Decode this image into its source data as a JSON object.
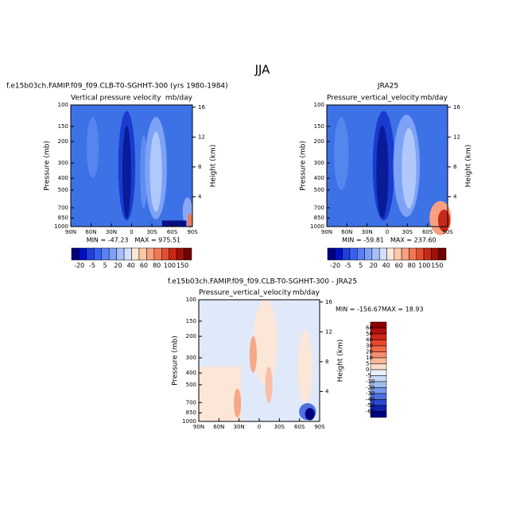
{
  "title": "JJA",
  "chart_data": [
    {
      "type": "contour",
      "title": "f.e15b03ch.FAMIP.f09_f09.CLB-T0-SGHHT-300 (yrs 1980-1984)",
      "subtitle": "Vertical pressure velocity",
      "units": "mb/day",
      "stats": [
        "MIN = -47.23",
        "MAX = 975.51"
      ],
      "xlabel": null,
      "ylabel": "Pressure (mb)",
      "y2label": "Height (km)",
      "xlim": [
        90,
        -90
      ],
      "xticks": [
        {
          "value": 90,
          "label": "90N"
        },
        {
          "value": 60,
          "label": "60N"
        },
        {
          "value": 30,
          "label": "30N"
        },
        0,
        {
          "value": -30,
          "label": "30S"
        },
        {
          "value": -60,
          "label": "60S"
        },
        {
          "value": -90,
          "label": "90S"
        }
      ],
      "ylim": [
        1000,
        100
      ],
      "ylog": true,
      "yticks": [
        100,
        150,
        200,
        300,
        400,
        500,
        700,
        850,
        1000
      ],
      "y2lim": [
        0,
        16.3
      ],
      "y2ticks": [
        4,
        8,
        12,
        16
      ],
      "colorbar": {
        "orientation": "horizontal",
        "colors": [
          "#000080",
          "#0010c0",
          "#1f3fe0",
          "#3860f0",
          "#5a80f5",
          "#80a0f8",
          "#a8c0fa",
          "#d0e0fc",
          "#fde8d8",
          "#fcc8a8",
          "#f8a080",
          "#f07858",
          "#e05030",
          "#c82818",
          "#a01008",
          "#700000"
        ],
        "labels": [
          -20,
          -5,
          5,
          20,
          40,
          60,
          80,
          100,
          150
        ]
      },
      "field": "model"
    },
    {
      "type": "contour",
      "title": "JRA25",
      "subtitle": "Pressure_vertical_velocity",
      "units": "mb/day",
      "stats": [
        "MIN = -59.81",
        "MAX = 237.60"
      ],
      "xlabel": null,
      "ylabel": "Pressure (mb)",
      "y2label": "Height (km)",
      "xlim": [
        90,
        -90
      ],
      "xticks": [
        {
          "value": 90,
          "label": "90N"
        },
        {
          "value": 60,
          "label": "60N"
        },
        {
          "value": 30,
          "label": "30N"
        },
        0,
        {
          "value": -30,
          "label": "30S"
        },
        {
          "value": -60,
          "label": "60S"
        },
        {
          "value": -90,
          "label": "90S"
        }
      ],
      "ylim": [
        1000,
        100
      ],
      "ylog": true,
      "yticks": [
        100,
        150,
        200,
        300,
        400,
        500,
        700,
        850,
        1000
      ],
      "y2lim": [
        0,
        16.3
      ],
      "y2ticks": [
        4,
        8,
        12,
        16
      ],
      "colorbar": {
        "orientation": "horizontal",
        "colors": [
          "#000080",
          "#0010c0",
          "#1f3fe0",
          "#3860f0",
          "#5a80f5",
          "#80a0f8",
          "#a8c0fa",
          "#d0e0fc",
          "#fde8d8",
          "#fcc8a8",
          "#f8a080",
          "#f07858",
          "#e05030",
          "#c82818",
          "#a01008",
          "#700000"
        ],
        "labels": [
          -20,
          -5,
          5,
          20,
          40,
          60,
          80,
          100,
          150
        ]
      },
      "field": "obs"
    },
    {
      "type": "contour",
      "title": "f.e15b03ch.FAMIP.f09_f09.CLB-T0-SGHHT-300 - JRA25",
      "subtitle": "Pressure_vertical_velocity",
      "units": "mb/day",
      "stats": [
        "MIN = -156.67",
        "MAX = 18.93"
      ],
      "xlabel": null,
      "ylabel": "Pressure (mb)",
      "y2label": "Height (km)",
      "xlim": [
        90,
        -90
      ],
      "xticks": [
        {
          "value": 90,
          "label": "90N"
        },
        {
          "value": 60,
          "label": "60N"
        },
        {
          "value": 30,
          "label": "30N"
        },
        0,
        {
          "value": -30,
          "label": "30S"
        },
        {
          "value": -60,
          "label": "60S"
        },
        {
          "value": -90,
          "label": "90S"
        }
      ],
      "ylim": [
        1000,
        100
      ],
      "ylog": true,
      "yticks": [
        100,
        150,
        200,
        300,
        400,
        500,
        700,
        850,
        1000
      ],
      "y2lim": [
        0,
        16.3
      ],
      "y2ticks": [
        4,
        8,
        12,
        16
      ],
      "colorbar": {
        "orientation": "vertical",
        "colors": [
          "#8b0000",
          "#b01010",
          "#d02818",
          "#e84828",
          "#f06848",
          "#f49070",
          "#f8b898",
          "#fcdcc8",
          "#e8eef8",
          "#c8d8f4",
          "#a0bcf0",
          "#7898ea",
          "#4f70e0",
          "#2a48d0",
          "#1020b0",
          "#000080"
        ],
        "labels": [
          60,
          50,
          40,
          30,
          20,
          10,
          5,
          0,
          -5,
          -10,
          -20,
          -30,
          -40,
          -50,
          -60
        ]
      },
      "field": "diff"
    }
  ]
}
